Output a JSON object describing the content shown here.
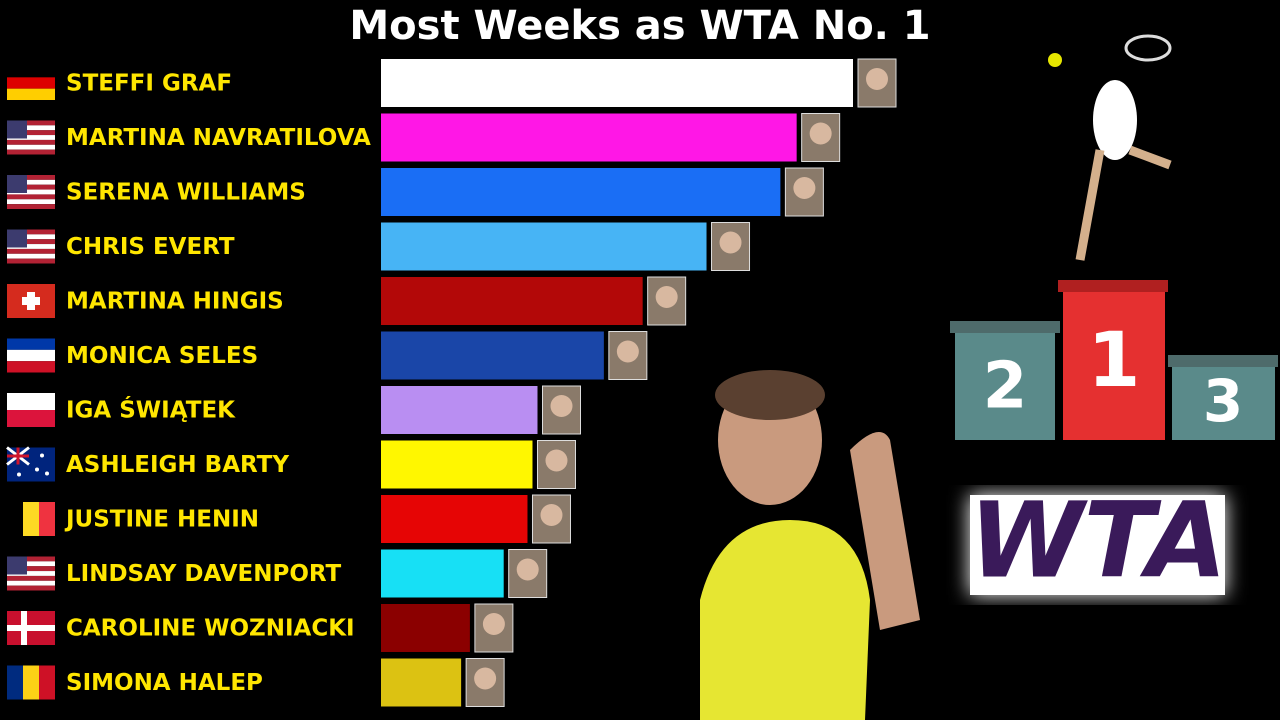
{
  "chart_data": {
    "type": "bar",
    "orientation": "horizontal",
    "title": "Most Weeks as WTA No. 1",
    "categories": [
      "STEFFI GRAF",
      "MARTINA NAVRATILOVA",
      "SERENA WILLIAMS",
      "CHRIS EVERT",
      "MARTINA HINGIS",
      "MONICA SELES",
      "IGA ŚWIĄTEK",
      "ASHLEIGH BARTY",
      "JUSTINE HENIN",
      "LINDSAY DAVENPORT",
      "CAROLINE WOZNIACKI",
      "SIMONA HALEP"
    ],
    "values": [
      377,
      332,
      319,
      260,
      209,
      178,
      125,
      121,
      117,
      98,
      71,
      64
    ],
    "colors": [
      "#ffffff",
      "#ff17e6",
      "#1a6ef5",
      "#47b4f5",
      "#b30808",
      "#1a46a8",
      "#b98ef2",
      "#fff700",
      "#e60505",
      "#17e0f5",
      "#8b0000",
      "#dcc212"
    ]
  },
  "podium": [
    "2",
    "1",
    "3"
  ],
  "logo": "WTA"
}
